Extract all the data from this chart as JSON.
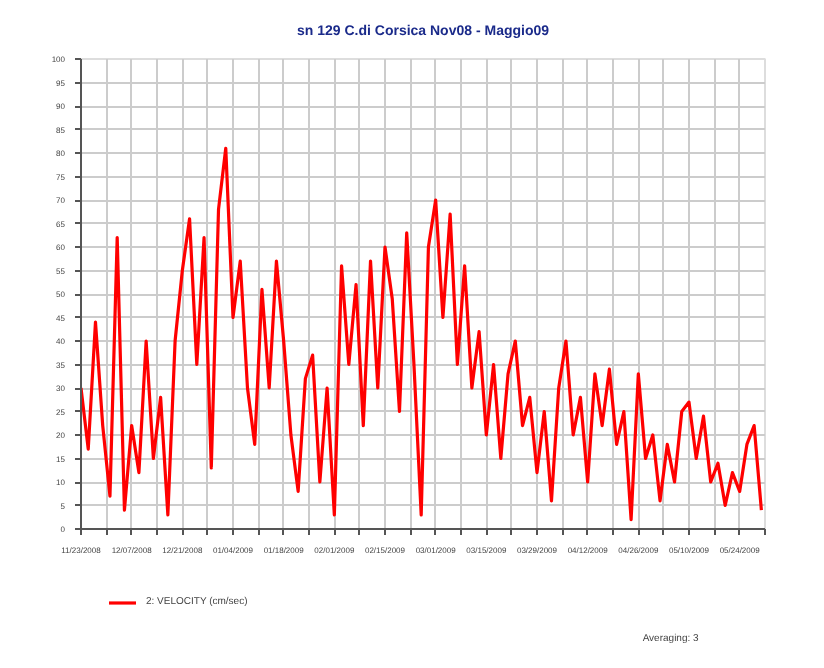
{
  "chart_data": {
    "type": "line",
    "title": "sn 129 C.di Corsica Nov08 - Maggio09",
    "x": [
      "2008-11-23",
      "2008-11-25",
      "2008-11-27",
      "2008-11-29",
      "2008-12-01",
      "2008-12-03",
      "2008-12-05",
      "2008-12-07",
      "2008-12-09",
      "2008-12-11",
      "2008-12-13",
      "2008-12-15",
      "2008-12-17",
      "2008-12-19",
      "2008-12-21",
      "2008-12-23",
      "2008-12-25",
      "2008-12-27",
      "2008-12-29",
      "2008-12-31",
      "2009-01-02",
      "2009-01-04",
      "2009-01-06",
      "2009-01-08",
      "2009-01-10",
      "2009-01-12",
      "2009-01-14",
      "2009-01-16",
      "2009-01-18",
      "2009-01-20",
      "2009-01-22",
      "2009-01-24",
      "2009-01-26",
      "2009-01-28",
      "2009-01-30",
      "2009-02-01",
      "2009-02-03",
      "2009-02-05",
      "2009-02-07",
      "2009-02-09",
      "2009-02-11",
      "2009-02-13",
      "2009-02-15",
      "2009-02-17",
      "2009-02-19",
      "2009-02-21",
      "2009-02-23",
      "2009-02-25",
      "2009-02-27",
      "2009-03-01",
      "2009-03-03",
      "2009-03-05",
      "2009-03-07",
      "2009-03-09",
      "2009-03-11",
      "2009-03-13",
      "2009-03-15",
      "2009-03-17",
      "2009-03-19",
      "2009-03-21",
      "2009-03-23",
      "2009-03-25",
      "2009-03-27",
      "2009-03-29",
      "2009-03-31",
      "2009-04-02",
      "2009-04-04",
      "2009-04-06",
      "2009-04-08",
      "2009-04-10",
      "2009-04-12",
      "2009-04-14",
      "2009-04-16",
      "2009-04-18",
      "2009-04-20",
      "2009-04-22",
      "2009-04-24",
      "2009-04-26",
      "2009-04-28",
      "2009-04-30",
      "2009-05-02",
      "2009-05-04",
      "2009-05-06",
      "2009-05-08",
      "2009-05-10",
      "2009-05-12",
      "2009-05-14",
      "2009-05-16",
      "2009-05-18",
      "2009-05-20",
      "2009-05-22",
      "2009-05-24",
      "2009-05-26",
      "2009-05-28",
      "2009-05-30"
    ],
    "series": [
      {
        "name": "2: VELOCITY (cm/sec)",
        "color": "#ff0000",
        "values": [
          30,
          17,
          44,
          22,
          7,
          62,
          4,
          22,
          12,
          40,
          15,
          28,
          3,
          40,
          55,
          66,
          35,
          62,
          13,
          68,
          81,
          45,
          57,
          30,
          18,
          51,
          30,
          57,
          40,
          20,
          8,
          32,
          37,
          10,
          30,
          3,
          56,
          35,
          52,
          22,
          57,
          30,
          60,
          49,
          25,
          63,
          35,
          3,
          60,
          70,
          45,
          67,
          35,
          56,
          30,
          42,
          20,
          35,
          15,
          33,
          40,
          22,
          28,
          12,
          25,
          6,
          30,
          40,
          20,
          28,
          10,
          33,
          22,
          34,
          18,
          25,
          2,
          33,
          15,
          20,
          6,
          18,
          10,
          25,
          27,
          15,
          24,
          10,
          14,
          5,
          12,
          8,
          18,
          22,
          4
        ]
      }
    ],
    "xlim": [
      "2008-11-23",
      "2009-05-31"
    ],
    "xticks": [
      {
        "value": "2008-11-23",
        "label": "11/23/2008"
      },
      {
        "value": "2008-11-30",
        "label": null
      },
      {
        "value": "2008-12-07",
        "label": "12/07/2008"
      },
      {
        "value": "2008-12-14",
        "label": null
      },
      {
        "value": "2008-12-21",
        "label": "12/21/2008"
      },
      {
        "value": "2008-12-28",
        "label": null
      },
      {
        "value": "2009-01-04",
        "label": "01/04/2009"
      },
      {
        "value": "2009-01-11",
        "label": null
      },
      {
        "value": "2009-01-18",
        "label": "01/18/2009"
      },
      {
        "value": "2009-01-25",
        "label": null
      },
      {
        "value": "2009-02-01",
        "label": "02/01/2009"
      },
      {
        "value": "2009-02-08",
        "label": null
      },
      {
        "value": "2009-02-15",
        "label": "02/15/2009"
      },
      {
        "value": "2009-02-22",
        "label": null
      },
      {
        "value": "2009-03-01",
        "label": "03/01/2009"
      },
      {
        "value": "2009-03-08",
        "label": null
      },
      {
        "value": "2009-03-15",
        "label": "03/15/2009"
      },
      {
        "value": "2009-03-22",
        "label": null
      },
      {
        "value": "2009-03-29",
        "label": "03/29/2009"
      },
      {
        "value": "2009-04-05",
        "label": null
      },
      {
        "value": "2009-04-12",
        "label": "04/12/2009"
      },
      {
        "value": "2009-04-19",
        "label": null
      },
      {
        "value": "2009-04-26",
        "label": "04/26/2009"
      },
      {
        "value": "2009-05-03",
        "label": null
      },
      {
        "value": "2009-05-10",
        "label": "05/10/2009"
      },
      {
        "value": "2009-05-17",
        "label": null
      },
      {
        "value": "2009-05-24",
        "label": "05/24/2009"
      },
      {
        "value": "2009-05-31",
        "label": null
      }
    ],
    "ylim": [
      0,
      100
    ],
    "yticks": [
      0,
      5,
      10,
      15,
      20,
      25,
      30,
      35,
      40,
      45,
      50,
      55,
      60,
      65,
      70,
      75,
      80,
      85,
      90,
      95,
      100
    ],
    "grid": true,
    "legend": "bottom left",
    "marker": "none",
    "line_style": "solid",
    "annotations": [
      "Averaging: 3"
    ]
  }
}
